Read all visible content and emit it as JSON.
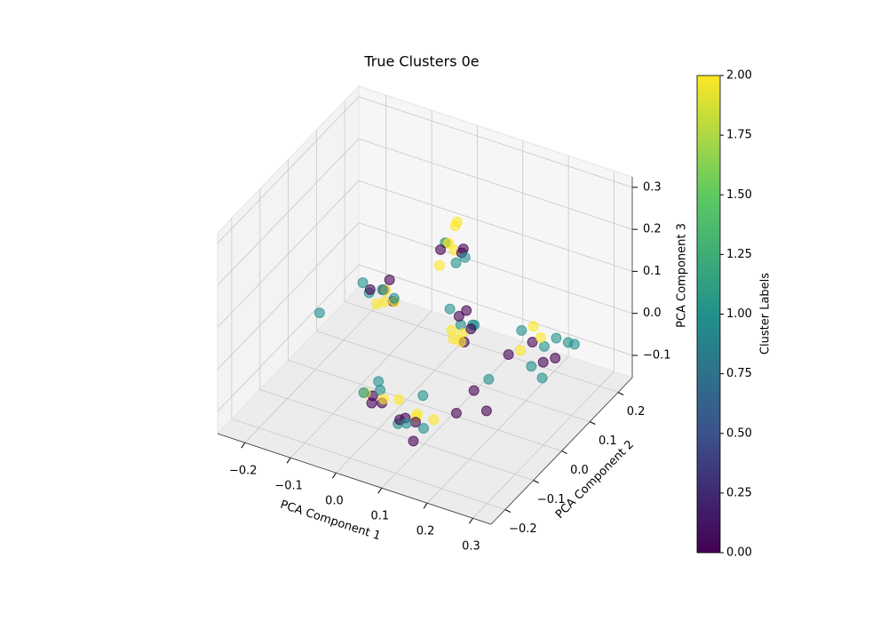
{
  "chart_data": {
    "type": "scatter3d",
    "title": "True Clusters 0e",
    "xlabel": "PCA Component 1",
    "ylabel": "PCA Component 2",
    "zlabel": "PCA Component 3",
    "colorbar_label": "Cluster Labels",
    "colormap": [
      "#440154",
      "#3b528b",
      "#21918c",
      "#5ec962",
      "#fde725"
    ],
    "clim": [
      0,
      2
    ],
    "cticks": [
      {
        "value": 0,
        "label": "0.00"
      },
      {
        "value": 0.25,
        "label": "0.25"
      },
      {
        "value": 0.5,
        "label": "0.50"
      },
      {
        "value": 0.75,
        "label": "0.75"
      },
      {
        "value": 1,
        "label": "1.00"
      },
      {
        "value": 1.25,
        "label": "1.25"
      },
      {
        "value": 1.5,
        "label": "1.50"
      },
      {
        "value": 1.75,
        "label": "1.75"
      },
      {
        "value": 2,
        "label": "2.00"
      }
    ],
    "xlim": [
      -0.26,
      0.34
    ],
    "ylim": [
      -0.25,
      0.25
    ],
    "zlim": [
      -0.153,
      0.325
    ],
    "xticks": [
      {
        "value": -0.2,
        "label": "−0.2"
      },
      {
        "value": -0.1,
        "label": "−0.1"
      },
      {
        "value": 0,
        "label": "0.0"
      },
      0.1,
      0.2,
      0.3
    ],
    "yticks": [
      {
        "value": -0.2,
        "label": "−0.2"
      },
      {
        "value": -0.1,
        "label": "−0.1"
      },
      {
        "value": 0,
        "label": "0.0"
      },
      0.1,
      0.2
    ],
    "zticks": [
      {
        "value": -0.1,
        "label": "−0.1"
      },
      {
        "value": 0,
        "label": "0.0"
      },
      0.1,
      0.2,
      0.3
    ],
    "grid": true,
    "x": [
      0.09,
      0.11,
      0.08,
      0.12,
      0.1,
      0.07,
      0.13,
      0.09,
      0.11,
      0.14,
      0.08,
      0.12,
      0.0,
      0.01,
      -0.01,
      0.02,
      0.0,
      -0.02,
      0.03,
      0.01,
      -0.05,
      -0.04,
      -0.06,
      -0.03,
      -0.07,
      -0.05,
      -0.02,
      -0.06,
      -0.08,
      -0.04,
      -0.03,
      -0.09,
      0.03,
      0.02,
      0.04,
      0.01,
      0.03,
      0.05,
      0.02,
      0.04,
      0.0,
      0.03,
      0.06,
      0.01,
      0.1,
      0.09,
      0.11,
      0.12,
      0.08,
      0.1,
      0.13,
      0.09,
      0.11,
      0.07,
      0.12,
      0.1,
      0.24,
      0.22,
      0.26,
      0.2,
      0.25,
      0.28,
      0.21,
      0.23,
      0.27,
      0.19,
      0.3,
      0.18,
      0.22,
      0.26,
      0.16,
      0.18,
      0.2,
      0.14,
      -0.123
    ],
    "y": [
      -0.15,
      -0.14,
      -0.16,
      -0.16,
      -0.13,
      -0.14,
      -0.15,
      -0.17,
      -0.12,
      -0.13,
      -0.13,
      -0.17,
      -0.12,
      -0.11,
      -0.13,
      -0.12,
      -0.1,
      -0.12,
      -0.13,
      -0.14,
      0.0,
      -0.01,
      0.01,
      0.0,
      -0.02,
      0.02,
      -0.01,
      -0.01,
      0.0,
      0.02,
      -0.03,
      -0.01,
      0.12,
      0.11,
      0.13,
      0.12,
      0.1,
      0.12,
      0.14,
      0.11,
      0.12,
      0.13,
      0.11,
      0.1,
      0.03,
      0.04,
      0.02,
      0.04,
      0.03,
      0.05,
      0.03,
      0.02,
      0.05,
      0.04,
      0.01,
      0.03,
      0.1,
      0.09,
      0.11,
      0.08,
      0.08,
      0.12,
      0.11,
      0.07,
      0.09,
      0.1,
      0.11,
      0.07,
      0.12,
      0.06,
      -0.02,
      0.0,
      -0.04,
      -0.05,
      -0.11
    ],
    "z": [
      -0.06,
      -0.05,
      -0.07,
      -0.04,
      -0.08,
      -0.03,
      -0.07,
      -0.05,
      -0.02,
      -0.06,
      -0.09,
      -0.09,
      -0.06,
      -0.05,
      -0.05,
      -0.07,
      -0.04,
      -0.06,
      -0.05,
      -0.06,
      0.09,
      0.1,
      0.08,
      0.07,
      0.09,
      0.1,
      0.08,
      0.06,
      0.08,
      0.06,
      0.09,
      0.1,
      0.13,
      0.15,
      0.12,
      0.14,
      0.16,
      0.14,
      0.17,
      0.11,
      0.12,
      0.19,
      0.13,
      0.1,
      0.04,
      0.05,
      0.03,
      0.04,
      0.02,
      0.06,
      0.05,
      0.01,
      0.02,
      0.06,
      0.02,
      0.0,
      -0.01,
      0.0,
      0.01,
      -0.02,
      -0.03,
      0.0,
      0.02,
      -0.04,
      -0.02,
      0.01,
      0.01,
      -0.03,
      -0.01,
      -0.05,
      -0.06,
      -0.04,
      -0.08,
      -0.1,
      0.086
    ],
    "c": [
      0,
      2,
      1,
      2,
      0,
      2,
      1,
      0,
      1,
      2,
      1,
      0,
      0,
      1,
      2,
      0,
      1,
      1,
      2,
      0,
      0,
      2,
      1,
      0,
      1,
      0,
      2,
      2,
      0,
      1,
      2,
      1,
      2,
      2,
      0,
      1,
      2,
      0,
      2,
      1,
      0,
      2,
      1,
      2,
      1,
      0,
      2,
      1,
      2,
      0,
      1,
      2,
      0,
      1,
      0,
      2,
      1,
      0,
      1,
      2,
      0,
      1,
      2,
      1,
      0,
      1,
      1,
      0,
      2,
      1,
      0,
      1,
      0,
      0,
      1
    ]
  }
}
